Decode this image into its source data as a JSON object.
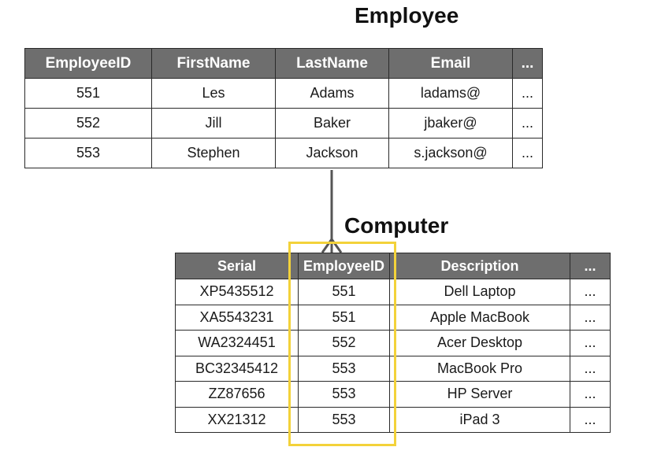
{
  "employee": {
    "title": "Employee",
    "columns": [
      "EmployeeID",
      "FirstName",
      "LastName",
      "Email",
      "..."
    ],
    "rows": [
      [
        "551",
        "Les",
        "Adams",
        "ladams@",
        "..."
      ],
      [
        "552",
        "Jill",
        "Baker",
        "jbaker@",
        "..."
      ],
      [
        "553",
        "Stephen",
        "Jackson",
        "s.jackson@",
        "..."
      ]
    ]
  },
  "computer": {
    "title": "Computer",
    "columns": [
      "Serial",
      "EmployeeID",
      "Description",
      "..."
    ],
    "rows": [
      [
        "XP5435512",
        "551",
        "Dell Laptop",
        "..."
      ],
      [
        "XA5543231",
        "551",
        "Apple MacBook",
        "..."
      ],
      [
        "WA2324451",
        "552",
        "Acer Desktop",
        "..."
      ],
      [
        "BC32345412",
        "553",
        "MacBook Pro",
        "..."
      ],
      [
        "ZZ87656",
        "553",
        "HP Server",
        "..."
      ],
      [
        "XX21312",
        "553",
        "iPad 3",
        "..."
      ]
    ]
  },
  "colors": {
    "header_bg": "#6e6e6e",
    "header_text": "#ffffff",
    "highlight": "#f3d23a",
    "line": "#555555"
  }
}
